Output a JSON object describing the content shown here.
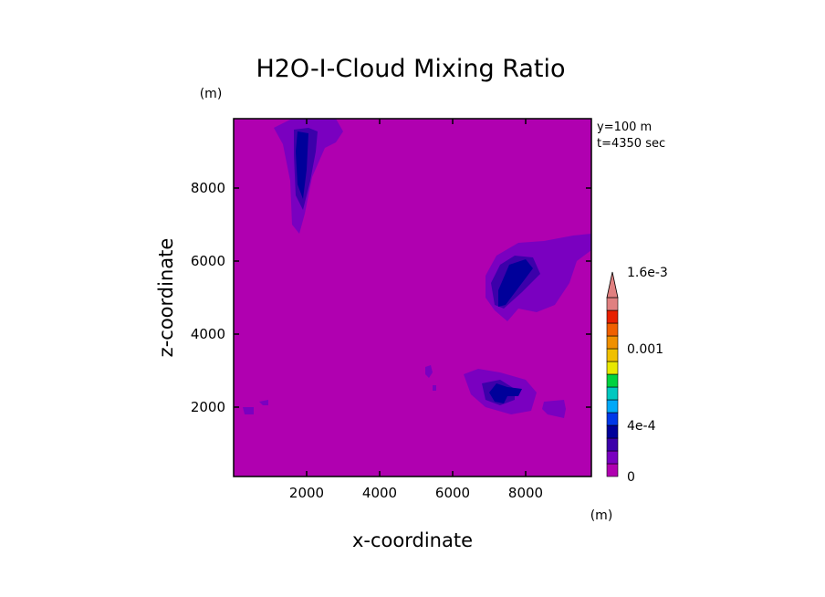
{
  "chart_data": {
    "type": "contour",
    "title": "H2O-I-Cloud Mixing Ratio",
    "xlabel": "x-coordinate",
    "ylabel": "z-coordinate",
    "x_unit": "(m)",
    "y_unit": "(m)",
    "xlim": [
      0,
      9800
    ],
    "ylim": [
      100,
      9900
    ],
    "x_ticks": [
      2000,
      4000,
      6000,
      8000
    ],
    "y_ticks": [
      2000,
      4000,
      6000,
      8000
    ],
    "x_tick_labels": [
      "2000",
      "4000",
      "6000",
      "8000"
    ],
    "y_tick_labels": [
      "2000",
      "4000",
      "6000",
      "8000"
    ],
    "annotation_lines": [
      "y=100 m",
      "t=4350 sec"
    ],
    "background_color": "#b000b0",
    "colorbar": {
      "levels": [
        0,
        0.0001,
        0.0002,
        0.0003,
        0.0004,
        0.0005,
        0.0006,
        0.0007,
        0.0008,
        0.0009,
        0.001,
        0.0011,
        0.0012,
        0.0013,
        0.0014,
        0.0015,
        0.0016,
        0.0017,
        0.0018,
        0.0019
      ],
      "labels": [
        {
          "text": "0",
          "value": 0
        },
        {
          "text": "4e-4",
          "value": 0.0004
        },
        {
          "text": "0.001",
          "value": 0.001
        },
        {
          "text": "1.6e-3",
          "value": 0.0016
        }
      ],
      "colors": [
        "#b000b0",
        "#7a00c0",
        "#3c00aa",
        "#00009a",
        "#0038e8",
        "#00a8f8",
        "#00c8c0",
        "#00d240",
        "#e8e800",
        "#f0c000",
        "#f09000",
        "#f06000",
        "#e82000",
        "#e08080"
      ],
      "extend": "max"
    },
    "contours": [
      {
        "name": "upper-left plume level1",
        "color": "#7a00c0",
        "points": [
          [
            1100,
            9650
          ],
          [
            1600,
            9900
          ],
          [
            2800,
            9900
          ],
          [
            3000,
            9550
          ],
          [
            2800,
            9250
          ],
          [
            2500,
            9100
          ],
          [
            2150,
            8300
          ],
          [
            1950,
            7300
          ],
          [
            1800,
            6750
          ],
          [
            1600,
            7000
          ],
          [
            1550,
            8200
          ],
          [
            1350,
            9200
          ]
        ]
      },
      {
        "name": "upper-left plume level2",
        "color": "#3c00aa",
        "points": [
          [
            1650,
            9600
          ],
          [
            2050,
            9650
          ],
          [
            2300,
            9550
          ],
          [
            2250,
            9000
          ],
          [
            2100,
            8200
          ],
          [
            1900,
            7400
          ],
          [
            1700,
            7800
          ],
          [
            1650,
            8900
          ]
        ]
      },
      {
        "name": "upper-left plume core",
        "color": "#00009a",
        "points": [
          [
            1750,
            9550
          ],
          [
            2050,
            9500
          ],
          [
            2000,
            8500
          ],
          [
            1900,
            7700
          ],
          [
            1750,
            8100
          ],
          [
            1700,
            9000
          ]
        ]
      },
      {
        "name": "upper-right plume level1",
        "color": "#7a00c0",
        "points": [
          [
            6900,
            5600
          ],
          [
            7200,
            6150
          ],
          [
            7800,
            6500
          ],
          [
            8500,
            6550
          ],
          [
            9300,
            6700
          ],
          [
            9800,
            6750
          ],
          [
            9800,
            6300
          ],
          [
            9400,
            6000
          ],
          [
            9200,
            5400
          ],
          [
            8800,
            4800
          ],
          [
            8300,
            4600
          ],
          [
            7800,
            4700
          ],
          [
            7500,
            4350
          ],
          [
            7150,
            4650
          ],
          [
            6900,
            5000
          ]
        ]
      },
      {
        "name": "upper-right plume level2",
        "color": "#3c00aa",
        "points": [
          [
            7050,
            5400
          ],
          [
            7300,
            5900
          ],
          [
            7700,
            6150
          ],
          [
            8200,
            6100
          ],
          [
            8400,
            5650
          ],
          [
            7900,
            5150
          ],
          [
            7400,
            4700
          ],
          [
            7150,
            4800
          ]
        ]
      },
      {
        "name": "upper-right plume core",
        "color": "#00009a",
        "points": [
          [
            7250,
            5200
          ],
          [
            7550,
            5900
          ],
          [
            8000,
            6050
          ],
          [
            8200,
            5800
          ],
          [
            7900,
            5400
          ],
          [
            7450,
            4800
          ],
          [
            7250,
            4750
          ]
        ]
      },
      {
        "name": "lower-mid cloud level1",
        "color": "#7a00c0",
        "points": [
          [
            6300,
            2900
          ],
          [
            6700,
            3050
          ],
          [
            7300,
            2950
          ],
          [
            8000,
            2750
          ],
          [
            8300,
            2400
          ],
          [
            8150,
            1900
          ],
          [
            7600,
            1800
          ],
          [
            6900,
            2000
          ],
          [
            6500,
            2350
          ]
        ]
      },
      {
        "name": "lower-mid cloud level2",
        "color": "#3c00aa",
        "points": [
          [
            6800,
            2650
          ],
          [
            7300,
            2750
          ],
          [
            7700,
            2500
          ],
          [
            7700,
            2200
          ],
          [
            7300,
            2050
          ],
          [
            6900,
            2200
          ]
        ]
      },
      {
        "name": "lower-mid cloud core",
        "color": "#00009a",
        "points": [
          [
            7000,
            2400
          ],
          [
            7200,
            2650
          ],
          [
            7500,
            2550
          ],
          [
            7900,
            2500
          ],
          [
            7800,
            2300
          ],
          [
            7500,
            2300
          ],
          [
            7400,
            2100
          ],
          [
            7150,
            2150
          ]
        ]
      },
      {
        "name": "lower-right blob",
        "color": "#7a00c0",
        "points": [
          [
            8500,
            2150
          ],
          [
            9050,
            2200
          ],
          [
            9100,
            1950
          ],
          [
            9050,
            1700
          ],
          [
            8600,
            1800
          ],
          [
            8450,
            1950
          ]
        ]
      },
      {
        "name": "small blob near 5300",
        "color": "#7a00c0",
        "points": [
          [
            5250,
            3100
          ],
          [
            5400,
            3150
          ],
          [
            5450,
            2950
          ],
          [
            5350,
            2800
          ],
          [
            5250,
            2900
          ]
        ]
      },
      {
        "name": "small blob near 5500",
        "color": "#7a00c0",
        "points": [
          [
            5450,
            2600
          ],
          [
            5550,
            2600
          ],
          [
            5550,
            2450
          ],
          [
            5450,
            2450
          ]
        ]
      },
      {
        "name": "small blob near 300",
        "color": "#7a00c0",
        "points": [
          [
            250,
            2000
          ],
          [
            550,
            2000
          ],
          [
            550,
            1800
          ],
          [
            300,
            1800
          ]
        ]
      },
      {
        "name": "small blob near 850",
        "color": "#7a00c0",
        "points": [
          [
            700,
            2150
          ],
          [
            950,
            2200
          ],
          [
            950,
            2050
          ],
          [
            800,
            2050
          ]
        ]
      }
    ]
  }
}
